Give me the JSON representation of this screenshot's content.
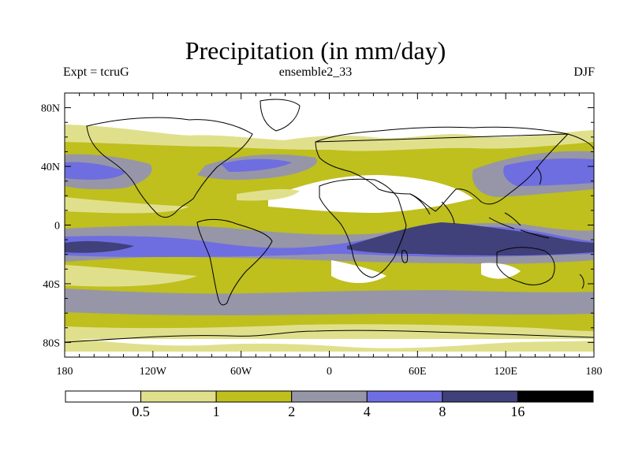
{
  "title": "Precipitation (in mm/day)",
  "subtitle_left": "Expt = tcruG",
  "subtitle_center": "ensemble2_33",
  "subtitle_right": "DJF",
  "map": {
    "lon_range": [
      -180,
      180
    ],
    "lat_range": [
      -90,
      90
    ],
    "y_ticks": [
      {
        "lat": 80,
        "label": "80N"
      },
      {
        "lat": 40,
        "label": "40N"
      },
      {
        "lat": 0,
        "label": "0"
      },
      {
        "lat": -40,
        "label": "40S"
      },
      {
        "lat": -80,
        "label": "80S"
      }
    ],
    "x_ticks": [
      {
        "lon": -180,
        "label": "180"
      },
      {
        "lon": -120,
        "label": "120W"
      },
      {
        "lon": -60,
        "label": "60W"
      },
      {
        "lon": 0,
        "label": "0"
      },
      {
        "lon": 60,
        "label": "60E"
      },
      {
        "lon": 120,
        "label": "120E"
      },
      {
        "lon": 180,
        "label": "180"
      }
    ]
  },
  "colorbar": {
    "colors": [
      "#ffffff",
      "#e0e08c",
      "#bfbf1e",
      "#9696a8",
      "#6e6ee0",
      "#40407a",
      "#000000"
    ],
    "labels": [
      "0.5",
      "1",
      "2",
      "4",
      "8",
      "16"
    ]
  }
}
